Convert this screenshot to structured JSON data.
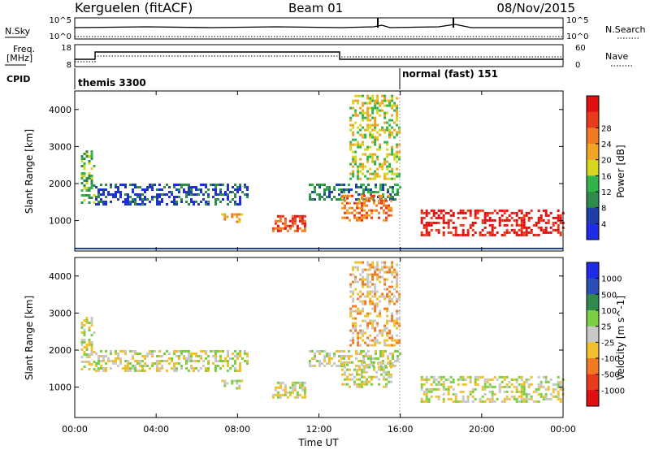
{
  "header": {
    "station": "Kerguelen (fitACF)",
    "beam": "Beam 01",
    "date": "08/Nov/2015"
  },
  "strips": {
    "nsky_label": "N.Sky",
    "nsearch_label": "N.Search",
    "freq_label": "Freq.",
    "freq_unit": "[MHz]",
    "nave_label": "Nave",
    "cpid_label": "CPID",
    "left_ticks_top": [
      "10^5",
      "10^0"
    ],
    "right_ticks_top": [
      "10^5",
      "10^0"
    ],
    "left_ticks_freq": [
      "18",
      "8"
    ],
    "right_ticks_nave": [
      "60",
      "0"
    ],
    "cpid_1": "themis 3300",
    "cpid_2": "normal (fast) 151"
  },
  "colors": {
    "power": [
      "#1f2ce6",
      "#1e3fa8",
      "#2f8a4c",
      "#33b44a",
      "#d6d61f",
      "#f0a324",
      "#f07a22",
      "#e83a1c",
      "#e01010"
    ],
    "velocity": [
      "#e01010",
      "#e83a1c",
      "#f07a22",
      "#f0c030",
      "#c8c8c8",
      "#7ccf43",
      "#2f8a4c",
      "#2a4fb8",
      "#1f2ce6"
    ]
  },
  "chart_data": [
    {
      "type": "heatmap",
      "title": "",
      "ylabel": "Slant Range [km]",
      "xlabel": "",
      "colorbar_label": "Power [dB]",
      "colorbar_ticks": [
        "4",
        "8",
        "12",
        "16",
        "20",
        "24",
        "28"
      ],
      "ylim": [
        180,
        4500
      ],
      "yticks": [
        "1000",
        "2000",
        "3000",
        "4000"
      ],
      "xlim_hours": [
        0,
        24
      ],
      "xticks": [
        "00:00",
        "04:00",
        "08:00",
        "12:00",
        "16:00",
        "20:00",
        "00:00"
      ],
      "echo_regions": [
        {
          "t": [
            0.3,
            1.0
          ],
          "r": [
            1500,
            2900
          ],
          "level": 3
        },
        {
          "t": [
            1.0,
            8.5
          ],
          "r": [
            1450,
            2000
          ],
          "level": 1
        },
        {
          "t": [
            7.2,
            8.3
          ],
          "r": [
            1000,
            1200
          ],
          "level": 5
        },
        {
          "t": [
            9.7,
            11.3
          ],
          "r": [
            750,
            1150
          ],
          "level": 7
        },
        {
          "t": [
            11.5,
            16.0
          ],
          "r": [
            1600,
            2000
          ],
          "level": 2
        },
        {
          "t": [
            13.1,
            15.5
          ],
          "r": [
            1000,
            1700
          ],
          "level": 6
        },
        {
          "t": [
            13.5,
            16.0
          ],
          "r": [
            2100,
            4400
          ],
          "level": 4
        },
        {
          "t": [
            17.0,
            24.0
          ],
          "r": [
            600,
            1300
          ],
          "level": 8
        }
      ]
    },
    {
      "type": "heatmap",
      "title": "",
      "ylabel": "Slant Range [km]",
      "xlabel": "Time UT",
      "colorbar_label": "Velocity [m s^-1]",
      "colorbar_ticks": [
        "1000",
        "500",
        "100",
        "25",
        "-25",
        "-100",
        "-500",
        "-1000"
      ],
      "ylim": [
        180,
        4500
      ],
      "yticks": [
        "1000",
        "2000",
        "3000",
        "4000"
      ],
      "xlim_hours": [
        0,
        24
      ],
      "xticks": [
        "00:00",
        "04:00",
        "08:00",
        "12:00",
        "16:00",
        "20:00",
        "00:00"
      ],
      "echo_regions": [
        {
          "t": [
            0.3,
            1.0
          ],
          "r": [
            1500,
            2900
          ],
          "level": 4
        },
        {
          "t": [
            1.0,
            8.5
          ],
          "r": [
            1450,
            2000
          ],
          "level": 4
        },
        {
          "t": [
            7.2,
            8.3
          ],
          "r": [
            1000,
            1200
          ],
          "level": 4
        },
        {
          "t": [
            9.7,
            11.3
          ],
          "r": [
            750,
            1150
          ],
          "level": 4
        },
        {
          "t": [
            11.5,
            16.0
          ],
          "r": [
            1600,
            2000
          ],
          "level": 4
        },
        {
          "t": [
            13.1,
            15.5
          ],
          "r": [
            1000,
            1700
          ],
          "level": 4
        },
        {
          "t": [
            13.5,
            16.0
          ],
          "r": [
            2100,
            4400
          ],
          "level": 3
        },
        {
          "t": [
            17.0,
            24.0
          ],
          "r": [
            600,
            1300
          ],
          "level": 4
        }
      ]
    }
  ]
}
